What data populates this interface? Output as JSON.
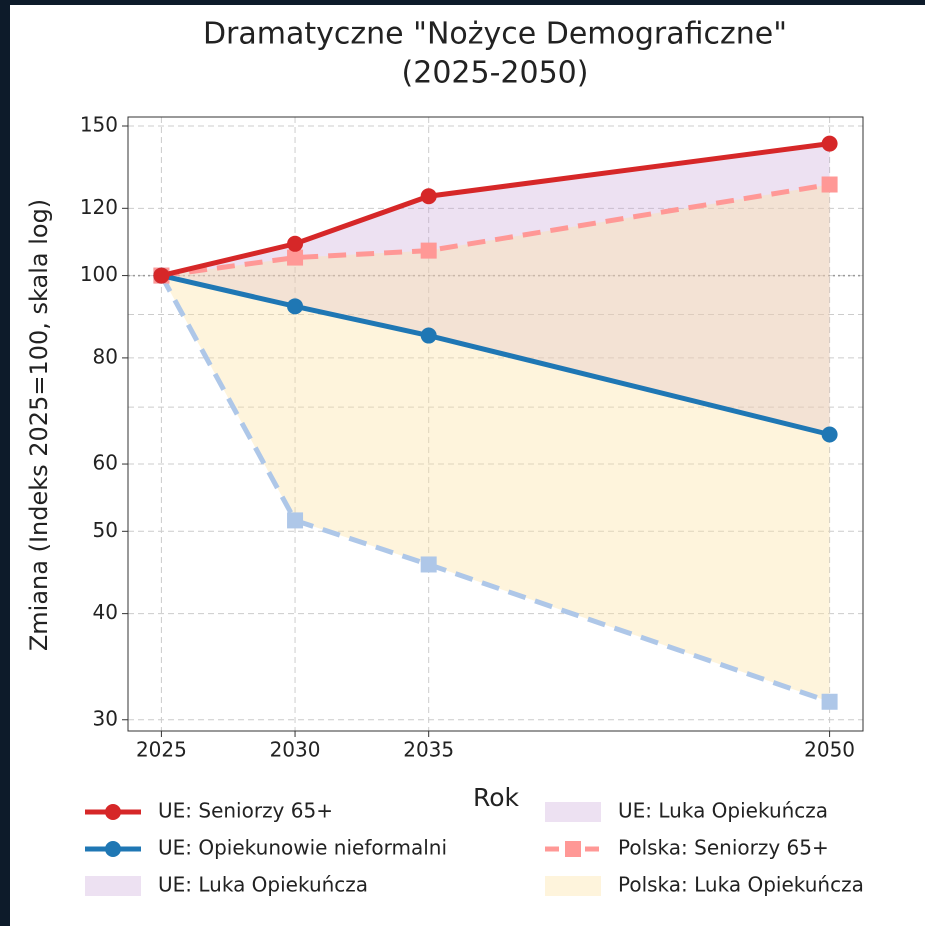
{
  "chart_data": {
    "type": "line",
    "title": [
      "Dramatyczne \"Nożyce Demograficzne\"",
      "(2025-2050)"
    ],
    "xlabel": "Rok",
    "ylabel": "Zmiana (Indeks 2025=100, skala log)",
    "x": [
      2025,
      2030,
      2035,
      2050
    ],
    "xlim": [
      2023.75,
      2051.25
    ],
    "xticks": [
      2025,
      2030,
      2035,
      2050
    ],
    "ylog": true,
    "ylim": [
      29.1,
      153.7
    ],
    "yticks": [
      30,
      40,
      50,
      60,
      80,
      100,
      120,
      150
    ],
    "minor_grid_yticks": [
      70,
      90
    ],
    "reference_line": 100,
    "grid": true,
    "series": [
      {
        "name": "UE: Seniorzy 65+",
        "color": "#d62728",
        "marker": "circle",
        "dashed": false,
        "values": [
          100,
          109,
          124,
          143
        ]
      },
      {
        "name": "UE: Opiekunowie nieformalni",
        "color": "#1f77b4",
        "marker": "circle",
        "dashed": false,
        "values": [
          100,
          92,
          85,
          65
        ]
      },
      {
        "name": "Polska: Seniorzy 65+",
        "color": "#ff9896",
        "marker": "square",
        "dashed": true,
        "values": [
          100,
          105,
          107,
          128
        ]
      },
      {
        "color": "#aec7e8",
        "marker": "square",
        "dashed": true,
        "values": [
          100,
          51.5,
          45.7,
          31.5
        ]
      }
    ],
    "areas": [
      {
        "name": "UE: Luka Opiekuńcza",
        "color": "#c39bd3",
        "opacity": 0.3
      },
      {
        "name": "Polska: Luka Opiekuńcza",
        "color": "#fde3a7",
        "opacity": 0.4
      }
    ],
    "legend": "bottom"
  }
}
